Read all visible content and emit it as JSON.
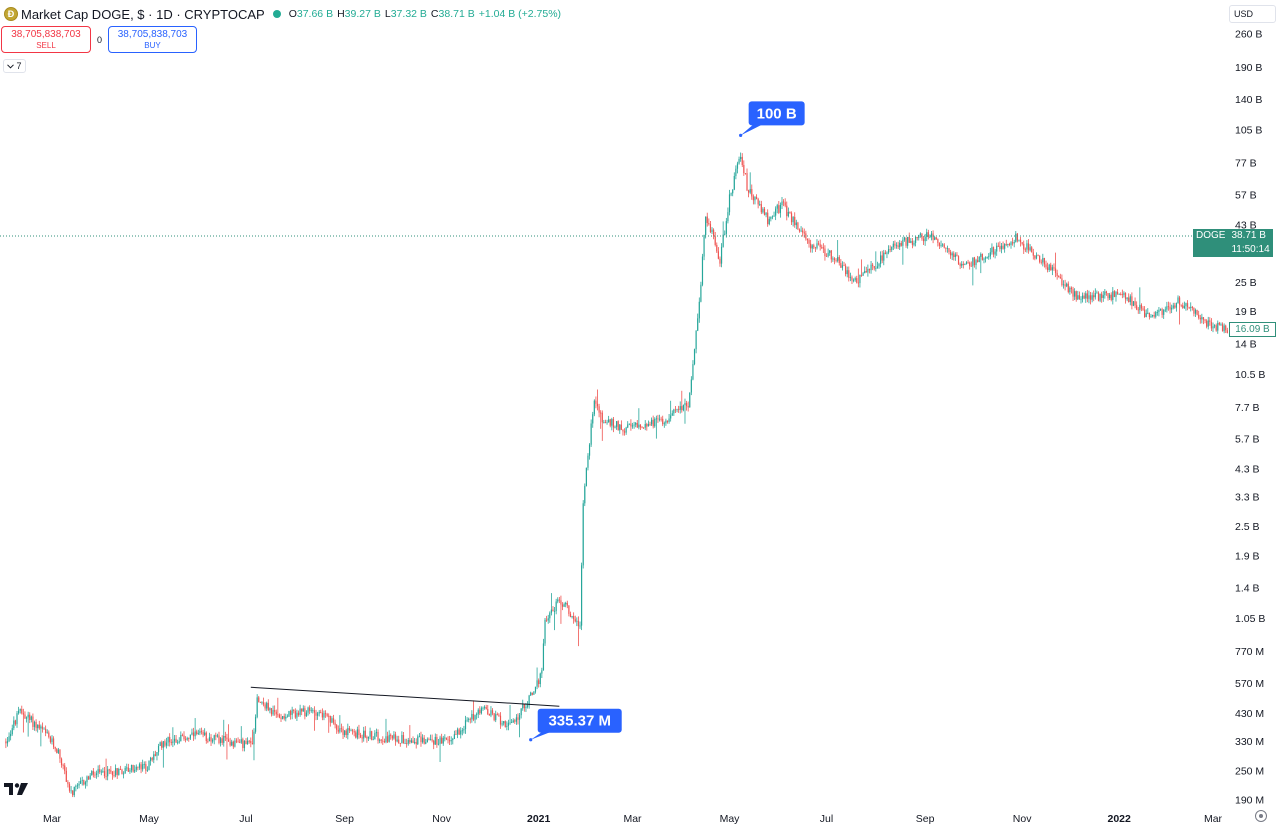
{
  "header": {
    "symbol_title": "Market Cap DOGE, $ · 1D · CRYPTOCAP",
    "ohlc": {
      "o_label": "O",
      "o_value": "37.66 B",
      "h_label": "H",
      "h_value": "39.27 B",
      "l_label": "L",
      "l_value": "37.32 B",
      "c_label": "C",
      "c_value": "38.71 B",
      "change": "+1.04 B (+2.75%)"
    }
  },
  "trade": {
    "sell_price": "38,705,838,703",
    "sell_label": "SELL",
    "spread": "0",
    "buy_price": "38,705,838,703",
    "buy_label": "BUY"
  },
  "indicators_toggle": {
    "count": "7",
    "icon": "chevron-down-icon"
  },
  "currency": {
    "label": "USD",
    "icon": "chevron-down-icon"
  },
  "current_tag": {
    "symbol": "DOGE",
    "value": "38.71 B",
    "countdown": "11:50:14"
  },
  "secondary_tag": {
    "value": "16.09 B"
  },
  "colors": {
    "up": "#26a69a",
    "down": "#ef5350",
    "callout": "#2962ff",
    "last_price": "#2f8f7a"
  },
  "chart_data": {
    "type": "candlestick",
    "title": "Market Cap DOGE, $ · 1D · CRYPTOCAP",
    "y_scale": "log",
    "y_ticks": [
      "260 B",
      "190 B",
      "140 B",
      "105 B",
      "77 B",
      "57 B",
      "43 B",
      "25 B",
      "19 B",
      "14 B",
      "10.5 B",
      "7.7 B",
      "5.7 B",
      "4.3 B",
      "3.3 B",
      "2.5 B",
      "1.9 B",
      "1.4 B",
      "1.05 B",
      "770 M",
      "570 M",
      "430 M",
      "330 M",
      "250 M",
      "190 M"
    ],
    "y_tick_values_billion": [
      260,
      190,
      140,
      105,
      77,
      57,
      43,
      25,
      19,
      14,
      10.5,
      7.7,
      5.7,
      4.3,
      3.3,
      2.5,
      1.9,
      1.4,
      1.05,
      0.77,
      0.57,
      0.43,
      0.33,
      0.25,
      0.19
    ],
    "x_ticks": [
      "Mar",
      "May",
      "Jul",
      "Sep",
      "Nov",
      "2021",
      "Mar",
      "May",
      "Jul",
      "Sep",
      "Nov",
      "2022",
      "Mar"
    ],
    "x_tick_dates": [
      "2020-03-01",
      "2020-05-01",
      "2020-07-01",
      "2020-09-01",
      "2020-11-01",
      "2021-01-01",
      "2021-03-01",
      "2021-05-01",
      "2021-07-01",
      "2021-09-01",
      "2021-11-01",
      "2022-01-01",
      "2022-03-01"
    ],
    "x_range": [
      "2020-02-01",
      "2022-03-31"
    ],
    "y_range_billion": [
      0.175,
      300
    ],
    "series_points_billion": [
      [
        "2020-02-01",
        0.33
      ],
      [
        "2020-02-10",
        0.44
      ],
      [
        "2020-02-25",
        0.36
      ],
      [
        "2020-03-05",
        0.3
      ],
      [
        "2020-03-13",
        0.2
      ],
      [
        "2020-03-25",
        0.24
      ],
      [
        "2020-04-10",
        0.25
      ],
      [
        "2020-04-30",
        0.26
      ],
      [
        "2020-05-10",
        0.33
      ],
      [
        "2020-06-01",
        0.35
      ],
      [
        "2020-06-20",
        0.33
      ],
      [
        "2020-07-05",
        0.32
      ],
      [
        "2020-07-08",
        0.5
      ],
      [
        "2020-07-20",
        0.42
      ],
      [
        "2020-08-15",
        0.44
      ],
      [
        "2020-09-01",
        0.36
      ],
      [
        "2020-10-01",
        0.34
      ],
      [
        "2020-11-05",
        0.33
      ],
      [
        "2020-11-25",
        0.45
      ],
      [
        "2020-12-15",
        0.38
      ],
      [
        "2020-12-28",
        0.52
      ],
      [
        "2021-01-03",
        0.62
      ],
      [
        "2021-01-05",
        1.05
      ],
      [
        "2021-01-15",
        1.25
      ],
      [
        "2021-01-27",
        0.98
      ],
      [
        "2021-01-29",
        3.2
      ],
      [
        "2021-02-05",
        8.5
      ],
      [
        "2021-02-10",
        6.8
      ],
      [
        "2021-02-25",
        6.3
      ],
      [
        "2021-03-20",
        6.8
      ],
      [
        "2021-04-05",
        8.0
      ],
      [
        "2021-04-12",
        20.0
      ],
      [
        "2021-04-16",
        48.0
      ],
      [
        "2021-04-25",
        31.0
      ],
      [
        "2021-05-01",
        55.0
      ],
      [
        "2021-05-08",
        85.0
      ],
      [
        "2021-05-12",
        62.0
      ],
      [
        "2021-05-25",
        45.0
      ],
      [
        "2021-06-03",
        52.0
      ],
      [
        "2021-06-20",
        36.0
      ],
      [
        "2021-07-05",
        32.0
      ],
      [
        "2021-07-20",
        25.0
      ],
      [
        "2021-08-15",
        36.0
      ],
      [
        "2021-09-05",
        39.0
      ],
      [
        "2021-09-25",
        29.0
      ],
      [
        "2021-10-15",
        34.0
      ],
      [
        "2021-10-28",
        38.0
      ],
      [
        "2021-11-15",
        30.0
      ],
      [
        "2021-12-05",
        22.0
      ],
      [
        "2021-12-20",
        22.0
      ],
      [
        "2022-01-05",
        22.0
      ],
      [
        "2022-01-20",
        18.0
      ],
      [
        "2022-02-08",
        21.0
      ],
      [
        "2022-02-25",
        17.0
      ],
      [
        "2022-03-10",
        16.09
      ]
    ],
    "annotations": [
      {
        "text": "100 B",
        "date": "2021-05-08",
        "value_billion": 100
      },
      {
        "text": "335.37 M",
        "date": "2020-12-27",
        "value_billion": 0.33537
      }
    ],
    "trendline": {
      "from": [
        "2020-07-04",
        0.55
      ],
      "to": [
        "2021-01-14",
        0.46
      ]
    },
    "last_value_billion": 38.71,
    "grid": false
  }
}
